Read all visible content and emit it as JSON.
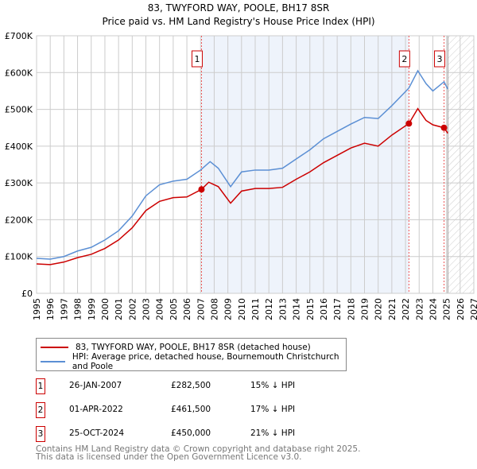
{
  "chart_data": {
    "type": "line",
    "title": "83, TWYFORD WAY, POOLE, BH17 8SR",
    "subtitle": "Price paid vs. HM Land Registry's House Price Index (HPI)",
    "xlim": [
      1995,
      2027
    ],
    "ylim": [
      0,
      700000
    ],
    "y_ticks": [
      0,
      100000,
      200000,
      300000,
      400000,
      500000,
      600000,
      700000
    ],
    "y_tick_labels": [
      "£0",
      "£100K",
      "£200K",
      "£300K",
      "£400K",
      "£500K",
      "£600K",
      "£700K"
    ],
    "x_ticks": [
      1995,
      1996,
      1997,
      1998,
      1999,
      2000,
      2001,
      2002,
      2003,
      2004,
      2005,
      2006,
      2007,
      2008,
      2009,
      2010,
      2011,
      2012,
      2013,
      2014,
      2015,
      2016,
      2017,
      2018,
      2019,
      2020,
      2021,
      2022,
      2023,
      2024,
      2025,
      2026,
      2027
    ],
    "grid": true,
    "shaded_period": [
      2007.07,
      2022.25
    ],
    "forecast_hatch_from": 2025.1,
    "series": [
      {
        "name": "83, TWYFORD WAY, POOLE, BH17 8SR (detached house)",
        "color": "#cc0000",
        "x": [
          1995,
          1996,
          1997,
          1998,
          1999,
          2000,
          2001,
          2002,
          2003,
          2004,
          2005,
          2006,
          2007.07,
          2007.6,
          2008.3,
          2009.2,
          2010,
          2011,
          2012,
          2013,
          2014,
          2015,
          2016,
          2017,
          2018,
          2019,
          2020,
          2021,
          2022.25,
          2022.9,
          2023.5,
          2024,
          2024.82,
          2025.1
        ],
        "y": [
          80000,
          78000,
          85000,
          97000,
          106000,
          122000,
          145000,
          178000,
          225000,
          250000,
          260000,
          262000,
          282500,
          302000,
          290000,
          245000,
          278000,
          285000,
          285000,
          288000,
          310000,
          330000,
          355000,
          375000,
          395000,
          408000,
          400000,
          430000,
          461500,
          502000,
          470000,
          458000,
          450000,
          435000
        ]
      },
      {
        "name": "HPI: Average price, detached house, Bournemouth Christchurch and Poole",
        "color": "#5b8fd4",
        "x": [
          1995,
          1996,
          1997,
          1998,
          1999,
          2000,
          2001,
          2002,
          2003,
          2004,
          2005,
          2006,
          2007,
          2007.7,
          2008.3,
          2009.2,
          2010,
          2011,
          2012,
          2013,
          2014,
          2015,
          2016,
          2017,
          2018,
          2019,
          2020,
          2021,
          2022.25,
          2022.9,
          2023.5,
          2024,
          2024.82,
          2025.1
        ],
        "y": [
          95000,
          93000,
          100000,
          115000,
          125000,
          145000,
          170000,
          210000,
          265000,
          295000,
          305000,
          310000,
          335000,
          358000,
          340000,
          290000,
          330000,
          335000,
          335000,
          340000,
          365000,
          390000,
          420000,
          440000,
          460000,
          478000,
          475000,
          510000,
          558000,
          605000,
          570000,
          550000,
          575000,
          555000
        ]
      }
    ],
    "sales": [
      {
        "label": "1",
        "x": 2007.07,
        "y": 282500,
        "date": "26-JAN-2007",
        "price": "£282,500",
        "hpi": "15% ↓ HPI"
      },
      {
        "label": "2",
        "x": 2022.25,
        "y": 461500,
        "date": "01-APR-2022",
        "price": "£461,500",
        "hpi": "17% ↓ HPI"
      },
      {
        "label": "3",
        "x": 2024.82,
        "y": 450000,
        "date": "25-OCT-2024",
        "price": "£450,000",
        "hpi": "21% ↓ HPI"
      }
    ]
  },
  "footer": {
    "line1": "Contains HM Land Registry data © Crown copyright and database right 2025.",
    "line2": "This data is licensed under the Open Government Licence v3.0."
  }
}
